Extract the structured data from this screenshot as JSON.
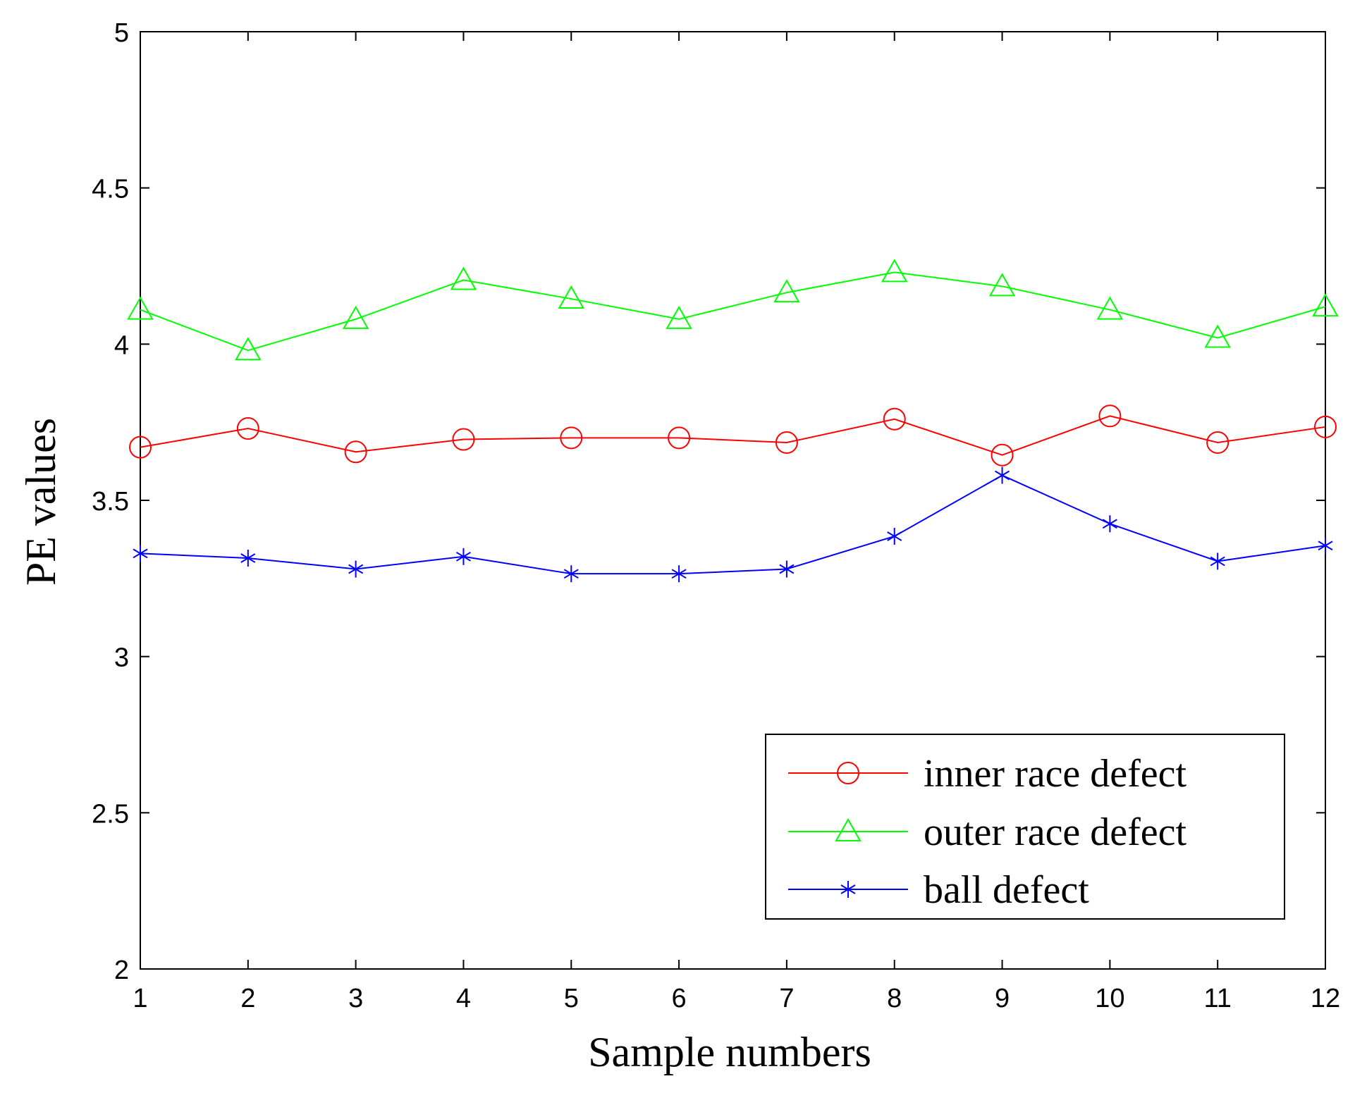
{
  "chart_data": {
    "type": "line",
    "title": "",
    "xlabel": "Sample numbers",
    "ylabel": "PE values",
    "x": [
      1,
      2,
      3,
      4,
      5,
      6,
      7,
      8,
      9,
      10,
      11,
      12
    ],
    "xlim": [
      1,
      12
    ],
    "ylim": [
      2,
      5
    ],
    "xticks": [
      "1",
      "2",
      "3",
      "4",
      "5",
      "6",
      "7",
      "8",
      "9",
      "10",
      "11",
      "12"
    ],
    "yticks": [
      "2",
      "2.5",
      "3",
      "3.5",
      "4",
      "4.5",
      "5"
    ],
    "grid": false,
    "legend_position": "bottom-right",
    "series": [
      {
        "name": "inner race defect",
        "color": "#ff0000",
        "marker": "circle",
        "values": [
          3.67,
          3.73,
          3.655,
          3.695,
          3.7,
          3.7,
          3.685,
          3.76,
          3.645,
          3.77,
          3.685,
          3.735
        ]
      },
      {
        "name": "outer race defect",
        "color": "#00ff00",
        "marker": "triangle",
        "values": [
          4.11,
          3.98,
          4.08,
          4.205,
          4.145,
          4.08,
          4.165,
          4.23,
          4.185,
          4.11,
          4.02,
          4.12
        ]
      },
      {
        "name": "ball defect",
        "color": "#0000ff",
        "marker": "star",
        "values": [
          3.33,
          3.315,
          3.28,
          3.32,
          3.265,
          3.265,
          3.28,
          3.385,
          3.58,
          3.425,
          3.305,
          3.355
        ]
      }
    ]
  }
}
